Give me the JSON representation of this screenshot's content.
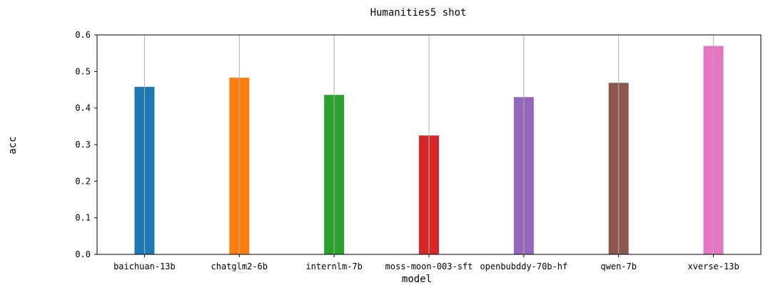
{
  "chart_data": {
    "type": "bar",
    "title": "Humanities5 shot",
    "xlabel": "model",
    "ylabel": "acc",
    "categories": [
      "baichuan-13b",
      "chatglm2-6b",
      "internlm-7b",
      "moss-moon-003-sft",
      "openbubddy-70b-hf",
      "qwen-7b",
      "xverse-13b"
    ],
    "values": [
      0.458,
      0.483,
      0.436,
      0.325,
      0.43,
      0.469,
      0.57
    ],
    "colors": [
      "#1f77b4",
      "#ff7f0e",
      "#2ca02c",
      "#d62728",
      "#9467bd",
      "#8c564b",
      "#e377c2"
    ],
    "ylim": [
      0,
      0.6
    ],
    "yticks": [
      "0.0",
      "0.1",
      "0.2",
      "0.3",
      "0.4",
      "0.5",
      "0.6"
    ],
    "grid": "x",
    "legend": "none"
  }
}
